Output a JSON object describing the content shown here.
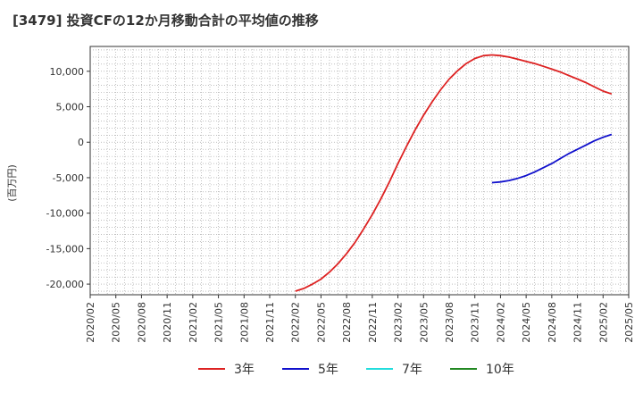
{
  "chart_data": {
    "type": "line",
    "title": "[3479]  投資CFの12か月移動合計の平均値の推移",
    "ylabel": "(百万円)",
    "xlabel": "",
    "x_ticks": [
      "2020/02",
      "2020/05",
      "2020/08",
      "2020/11",
      "2021/02",
      "2021/05",
      "2021/08",
      "2021/11",
      "2022/02",
      "2022/05",
      "2022/08",
      "2022/11",
      "2023/02",
      "2023/05",
      "2023/08",
      "2023/11",
      "2024/02",
      "2024/05",
      "2024/08",
      "2024/11",
      "2025/02",
      "2025/05"
    ],
    "y_ticks": [
      10000,
      5000,
      0,
      -5000,
      -10000,
      -15000,
      -20000
    ],
    "y_tick_labels": [
      "10,000",
      "5,000",
      "0",
      "-5,000",
      "-10,000",
      "-15,000",
      "-20,000"
    ],
    "ylim": [
      -21500,
      13500
    ],
    "xlim": [
      "2020/02",
      "2025/05"
    ],
    "grid": true,
    "legend_position": "bottom",
    "series": [
      {
        "name": "3年",
        "color": "#dd2222",
        "points": [
          [
            "2022/02",
            -21000
          ],
          [
            "2022/03",
            -20600
          ],
          [
            "2022/04",
            -20000
          ],
          [
            "2022/05",
            -19300
          ],
          [
            "2022/06",
            -18300
          ],
          [
            "2022/07",
            -17100
          ],
          [
            "2022/08",
            -15700
          ],
          [
            "2022/09",
            -14100
          ],
          [
            "2022/10",
            -12200
          ],
          [
            "2022/11",
            -10200
          ],
          [
            "2022/12",
            -8000
          ],
          [
            "2023/01",
            -5600
          ],
          [
            "2023/02",
            -3000
          ],
          [
            "2023/03",
            -600
          ],
          [
            "2023/04",
            1700
          ],
          [
            "2023/05",
            3800
          ],
          [
            "2023/06",
            5700
          ],
          [
            "2023/07",
            7400
          ],
          [
            "2023/08",
            8900
          ],
          [
            "2023/09",
            10100
          ],
          [
            "2023/10",
            11100
          ],
          [
            "2023/11",
            11800
          ],
          [
            "2023/12",
            12200
          ],
          [
            "2024/01",
            12300
          ],
          [
            "2024/02",
            12200
          ],
          [
            "2024/03",
            12000
          ],
          [
            "2024/04",
            11700
          ],
          [
            "2024/05",
            11400
          ],
          [
            "2024/06",
            11100
          ],
          [
            "2024/07",
            10700
          ],
          [
            "2024/08",
            10300
          ],
          [
            "2024/09",
            9900
          ],
          [
            "2024/10",
            9400
          ],
          [
            "2024/11",
            8900
          ],
          [
            "2024/12",
            8400
          ],
          [
            "2025/01",
            7800
          ],
          [
            "2025/02",
            7200
          ],
          [
            "2025/03",
            6800
          ]
        ]
      },
      {
        "name": "5年",
        "color": "#1010cc",
        "points": [
          [
            "2024/01",
            -5700
          ],
          [
            "2024/02",
            -5600
          ],
          [
            "2024/03",
            -5400
          ],
          [
            "2024/04",
            -5100
          ],
          [
            "2024/05",
            -4700
          ],
          [
            "2024/06",
            -4200
          ],
          [
            "2024/07",
            -3600
          ],
          [
            "2024/08",
            -3000
          ],
          [
            "2024/09",
            -2300
          ],
          [
            "2024/10",
            -1600
          ],
          [
            "2024/11",
            -1000
          ],
          [
            "2024/12",
            -400
          ],
          [
            "2025/01",
            200
          ],
          [
            "2025/02",
            700
          ],
          [
            "2025/03",
            1100
          ]
        ]
      },
      {
        "name": "7年",
        "color": "#22dddd",
        "points": []
      },
      {
        "name": "10年",
        "color": "#228822",
        "points": []
      }
    ]
  }
}
